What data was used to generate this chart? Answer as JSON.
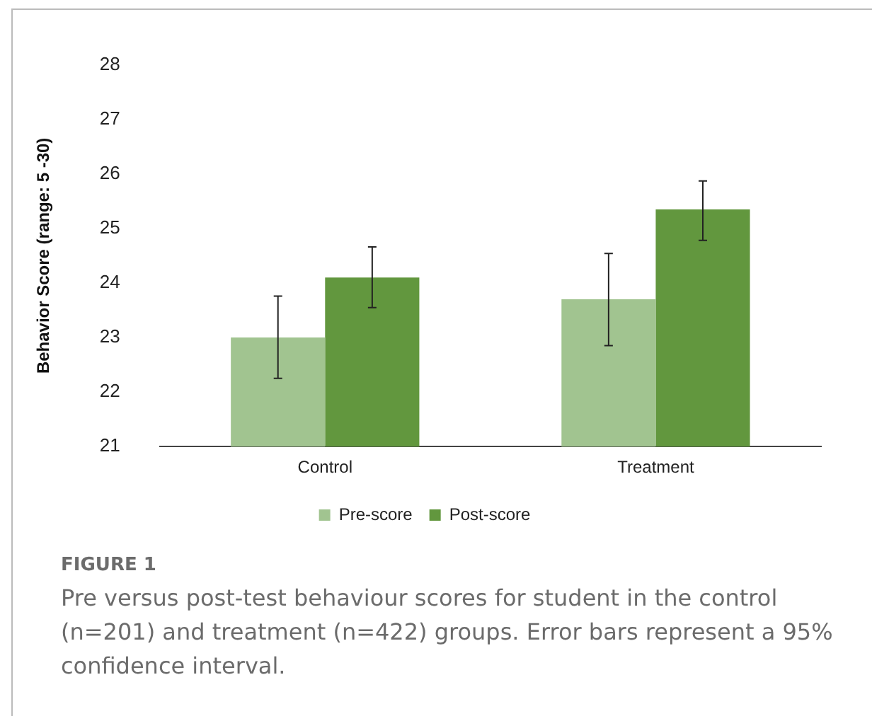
{
  "chart_data": {
    "type": "bar",
    "categories": [
      "Control",
      "Treatment"
    ],
    "series": [
      {
        "name": "Pre-score",
        "color": "#a1c490",
        "values": [
          23.0,
          23.7
        ],
        "errors": [
          [
            22.25,
            23.76
          ],
          [
            22.85,
            24.54
          ]
        ]
      },
      {
        "name": "Post-score",
        "color": "#62973e",
        "values": [
          24.1,
          25.35
        ],
        "errors": [
          [
            23.55,
            24.66
          ],
          [
            24.78,
            25.87
          ]
        ]
      }
    ],
    "ylabel": "Behavior Score (range: 5 -30)",
    "ylim": [
      21,
      28
    ],
    "yticks": [
      21,
      22,
      23,
      24,
      25,
      26,
      27,
      28
    ],
    "grid": false,
    "legend": "bottom",
    "annotations": [
      "FIGURE 1",
      "Pre versus post-test behaviour scores for student in the control (n=201) and treatment (n=422) groups. Error bars represent a 95% confidence interval."
    ]
  }
}
